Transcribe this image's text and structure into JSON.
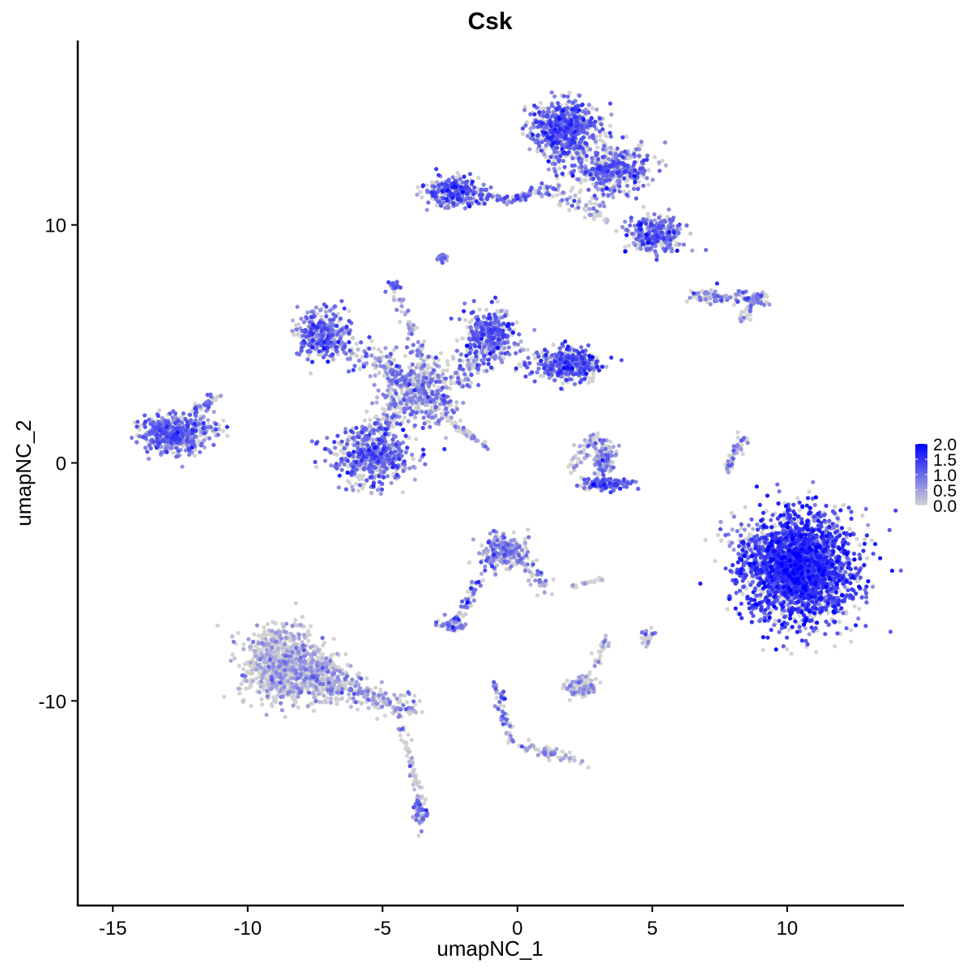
{
  "chart_data": {
    "type": "scatter",
    "title": "Csk",
    "xlabel": "umapNC_1",
    "ylabel": "umapNC_2",
    "xlim": [
      -16.3,
      14.3
    ],
    "ylim": [
      -18.6,
      17.75
    ],
    "xticks": [
      -15,
      -10,
      -5,
      0,
      5,
      10
    ],
    "xtick_labels": [
      "-15",
      "-10",
      "-5",
      "0",
      "5",
      "10"
    ],
    "yticks": [
      -10,
      0,
      10
    ],
    "ytick_labels": [
      "-10",
      "0",
      "10"
    ],
    "grid": false,
    "legend": {
      "placement": "right",
      "type": "colorbar",
      "min": 0,
      "max": 2.0,
      "ticks": [
        0.0,
        0.5,
        1.0,
        1.5,
        2.0
      ],
      "tick_labels": [
        "0.0",
        "0.5",
        "1.0",
        "1.5",
        "2.0"
      ]
    },
    "colors": {
      "low": "#d3d3d3",
      "high": "#0000ff"
    },
    "clusters": [
      {
        "center": [
          10.4,
          -4.4
        ],
        "sd": [
          1.0,
          1.1
        ],
        "n": 2600,
        "expr": 1.35
      },
      {
        "center": [
          1.8,
          14.0
        ],
        "sd": [
          0.6,
          0.6
        ],
        "n": 700,
        "expr": 1.0
      },
      {
        "center": [
          3.6,
          12.3
        ],
        "sd": [
          0.7,
          0.5
        ],
        "n": 450,
        "expr": 0.9
      },
      {
        "center": [
          5.1,
          9.6
        ],
        "sd": [
          0.5,
          0.4
        ],
        "n": 300,
        "expr": 0.95
      },
      {
        "center": [
          -2.4,
          11.4
        ],
        "sd": [
          0.5,
          0.3
        ],
        "n": 300,
        "expr": 1.0
      },
      {
        "center": [
          -7.2,
          5.4
        ],
        "sd": [
          0.5,
          0.5
        ],
        "n": 350,
        "expr": 0.9
      },
      {
        "center": [
          -5.4,
          0.3
        ],
        "sd": [
          0.7,
          0.6
        ],
        "n": 550,
        "expr": 0.95
      },
      {
        "center": [
          -1.0,
          5.4
        ],
        "sd": [
          0.5,
          0.5
        ],
        "n": 350,
        "expr": 1.0
      },
      {
        "center": [
          1.8,
          4.1
        ],
        "sd": [
          0.6,
          0.35
        ],
        "n": 400,
        "expr": 1.05
      },
      {
        "center": [
          -3.6,
          3.0
        ],
        "sd": [
          0.7,
          0.7
        ],
        "n": 400,
        "expr": 0.7
      },
      {
        "center": [
          -12.7,
          1.2
        ],
        "sd": [
          0.6,
          0.4
        ],
        "n": 550,
        "expr": 0.9
      },
      {
        "center": [
          -8.7,
          -8.5
        ],
        "sd": [
          0.7,
          0.8
        ],
        "n": 900,
        "expr": 0.25
      },
      {
        "center": [
          -7.3,
          -8.9
        ],
        "sd": [
          0.5,
          0.5
        ],
        "n": 250,
        "expr": 0.3
      },
      {
        "center": [
          3.2,
          0.2
        ],
        "sd": [
          0.25,
          0.5
        ],
        "n": 120,
        "expr": 0.7
      },
      {
        "center": [
          3.3,
          -0.9
        ],
        "sd": [
          0.5,
          0.12
        ],
        "n": 120,
        "expr": 1.1
      },
      {
        "center": [
          -0.5,
          -3.7
        ],
        "sd": [
          0.4,
          0.35
        ],
        "n": 220,
        "expr": 0.6
      },
      {
        "center": [
          -2.4,
          -6.8
        ],
        "sd": [
          0.25,
          0.15
        ],
        "n": 70,
        "expr": 0.7
      },
      {
        "center": [
          2.4,
          -9.4
        ],
        "sd": [
          0.3,
          0.2
        ],
        "n": 100,
        "expr": 0.4
      },
      {
        "center": [
          -3.6,
          -14.6
        ],
        "sd": [
          0.12,
          0.3
        ],
        "n": 70,
        "expr": 0.6
      },
      {
        "center": [
          4.8,
          -7.3
        ],
        "sd": [
          0.1,
          0.15
        ],
        "n": 25,
        "expr": 0.5
      },
      {
        "center": [
          -4.6,
          7.4
        ],
        "sd": [
          0.1,
          0.1
        ],
        "n": 25,
        "expr": 0.9
      },
      {
        "center": [
          -2.8,
          8.6
        ],
        "sd": [
          0.1,
          0.08
        ],
        "n": 20,
        "expr": 0.8
      }
    ],
    "trajectories": [
      {
        "from": [
          -0.5,
          11.0
        ],
        "to": [
          1.5,
          11.6
        ],
        "n": 60,
        "sd": 0.12,
        "expr": 0.8
      },
      {
        "from": [
          -1.5,
          11.3
        ],
        "to": [
          -0.5,
          11.1
        ],
        "n": 30,
        "sd": 0.08,
        "expr": 0.9
      },
      {
        "from": [
          1.5,
          11.4
        ],
        "to": [
          3.2,
          10.3
        ],
        "n": 60,
        "sd": 0.2,
        "expr": 0.5
      },
      {
        "from": [
          -6.5,
          4.8
        ],
        "to": [
          -4.0,
          3.5
        ],
        "n": 90,
        "sd": 0.3,
        "expr": 0.8
      },
      {
        "from": [
          -4.2,
          2.5
        ],
        "to": [
          -5.2,
          1.2
        ],
        "n": 80,
        "sd": 0.35,
        "expr": 0.7
      },
      {
        "from": [
          -2.2,
          3.5
        ],
        "to": [
          -1.2,
          4.8
        ],
        "n": 80,
        "sd": 0.3,
        "expr": 0.85
      },
      {
        "from": [
          -4.4,
          7.0
        ],
        "to": [
          -3.3,
          3.5
        ],
        "n": 60,
        "sd": 0.1,
        "expr": 0.6
      },
      {
        "from": [
          -2.8,
          2.0
        ],
        "to": [
          -1.2,
          0.7
        ],
        "n": 50,
        "sd": 0.08,
        "expr": 0.4
      },
      {
        "from": [
          -10.8,
          1.4
        ],
        "to": [
          -12.0,
          1.5
        ],
        "n": 20,
        "sd": 0.15,
        "expr": 0.3
      },
      {
        "from": [
          -12.0,
          2.0
        ],
        "to": [
          -11.2,
          2.8
        ],
        "n": 35,
        "sd": 0.15,
        "expr": 0.9
      },
      {
        "from": [
          -7.6,
          -9.2
        ],
        "to": [
          -4.0,
          -10.3
        ],
        "n": 220,
        "sd": 0.3,
        "expr": 0.45
      },
      {
        "from": [
          -4.3,
          -11.0
        ],
        "to": [
          -3.6,
          -14.2
        ],
        "n": 50,
        "sd": 0.1,
        "expr": 0.3
      },
      {
        "from": [
          2.0,
          -0.3
        ],
        "to": [
          3.0,
          1.3
        ],
        "n": 40,
        "sd": 0.15,
        "expr": 0.4
      },
      {
        "from": [
          -2.2,
          -6.6
        ],
        "to": [
          -1.0,
          -4.0
        ],
        "n": 50,
        "sd": 0.1,
        "expr": 0.9
      },
      {
        "from": [
          -0.2,
          -3.6
        ],
        "to": [
          1.1,
          -5.3
        ],
        "n": 60,
        "sd": 0.2,
        "expr": 0.6
      },
      {
        "from": [
          -0.8,
          -9.3
        ],
        "to": [
          -0.2,
          -11.7
        ],
        "n": 50,
        "sd": 0.1,
        "expr": 0.8
      },
      {
        "from": [
          -0.2,
          -11.7
        ],
        "to": [
          2.4,
          -12.6
        ],
        "n": 60,
        "sd": 0.12,
        "expr": 0.4
      },
      {
        "from": [
          6.5,
          7.0
        ],
        "to": [
          9.2,
          6.9
        ],
        "n": 100,
        "sd": 0.15,
        "expr": 0.8
      },
      {
        "from": [
          8.3,
          6.0
        ],
        "to": [
          9.0,
          7.3
        ],
        "n": 40,
        "sd": 0.12,
        "expr": 0.6
      },
      {
        "from": [
          7.8,
          -0.3
        ],
        "to": [
          8.4,
          1.2
        ],
        "n": 50,
        "sd": 0.1,
        "expr": 0.6
      },
      {
        "from": [
          8.0,
          -2.5
        ],
        "to": [
          9.2,
          -4.5
        ],
        "n": 60,
        "sd": 0.35,
        "expr": 0.6
      },
      {
        "from": [
          2.0,
          -5.2
        ],
        "to": [
          3.2,
          -4.9
        ],
        "n": 20,
        "sd": 0.05,
        "expr": 0.3
      },
      {
        "from": [
          3.3,
          -7.3
        ],
        "to": [
          2.8,
          -8.8
        ],
        "n": 25,
        "sd": 0.1,
        "expr": 0.3
      }
    ]
  }
}
